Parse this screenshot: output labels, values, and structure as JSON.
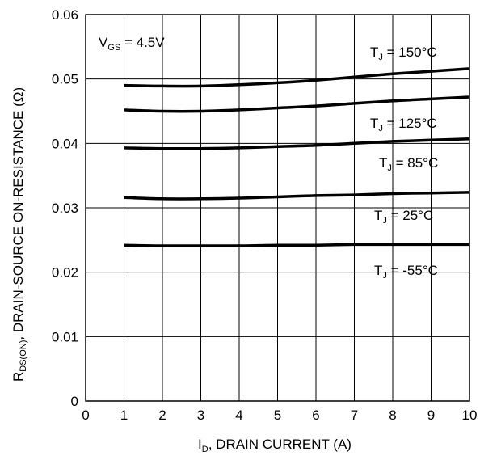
{
  "chart_data": {
    "type": "line",
    "title": "",
    "xlabel": {
      "main": "I",
      "sub": "D",
      "rest": ", DRAIN CURRENT (A)"
    },
    "ylabel": {
      "main": "R",
      "sub": "DS(ON)",
      "rest": ",   DRAIN-SOURCE ON-RESISTANCE (Ω)"
    },
    "condition": {
      "main": "V",
      "sub": "GS",
      "rest": " = 4.5V"
    },
    "xlim": [
      0,
      10
    ],
    "ylim": [
      0,
      0.06
    ],
    "x_ticks": [
      "0",
      "1",
      "2",
      "3",
      "4",
      "5",
      "6",
      "7",
      "8",
      "9",
      "10"
    ],
    "y_ticks": [
      "0",
      "0.01",
      "0.02",
      "0.03",
      "0.04",
      "0.05",
      "0.06"
    ],
    "grid": true,
    "x": [
      1,
      2,
      3,
      4,
      5,
      6,
      7,
      8,
      9,
      10
    ],
    "series": [
      {
        "name": "150°C",
        "label_prefix": "T",
        "label_sub": "J",
        "label_rest": " = 150°C",
        "values": [
          0.049,
          0.0489,
          0.0489,
          0.0491,
          0.0494,
          0.0498,
          0.0503,
          0.0508,
          0.0512,
          0.0516
        ]
      },
      {
        "name": "125°C",
        "label_prefix": "T",
        "label_sub": "J",
        "label_rest": " = 125°C",
        "values": [
          0.0452,
          0.045,
          0.045,
          0.0452,
          0.0455,
          0.0458,
          0.0462,
          0.0466,
          0.0469,
          0.0472
        ]
      },
      {
        "name": "85°C",
        "label_prefix": "T",
        "label_sub": "J",
        "label_rest": " = 85°C",
        "values": [
          0.0393,
          0.0392,
          0.0392,
          0.0393,
          0.0395,
          0.0397,
          0.04,
          0.0403,
          0.0405,
          0.0407
        ]
      },
      {
        "name": "25°C",
        "label_prefix": "T",
        "label_sub": "J",
        "label_rest": " = 25°C",
        "values": [
          0.0316,
          0.0314,
          0.0314,
          0.0315,
          0.0317,
          0.0319,
          0.032,
          0.0322,
          0.0323,
          0.0324
        ]
      },
      {
        "name": "-55°C",
        "label_prefix": "T",
        "label_sub": "J",
        "label_rest": " = -55°C",
        "values": [
          0.0242,
          0.0241,
          0.0241,
          0.0241,
          0.0242,
          0.0242,
          0.0243,
          0.0243,
          0.0243,
          0.0243
        ]
      }
    ]
  }
}
